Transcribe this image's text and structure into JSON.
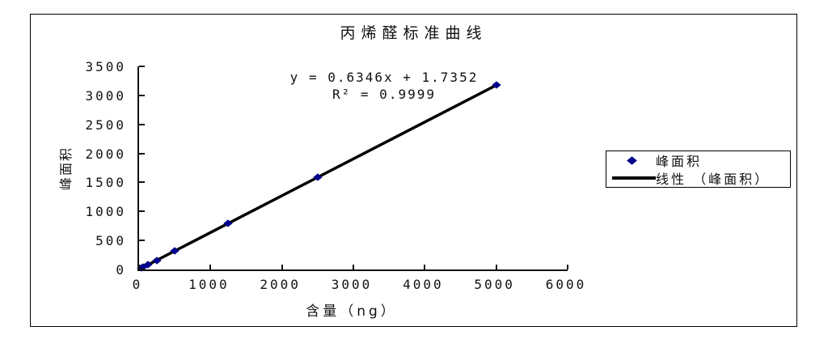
{
  "chart_data": {
    "type": "scatter",
    "title": "丙烯醛标准曲线",
    "xlabel": "含量（ng）",
    "ylabel": "峰面积",
    "xlim": [
      0,
      6000
    ],
    "ylim": [
      0,
      3500
    ],
    "x_ticks": [
      0,
      1000,
      2000,
      3000,
      4000,
      5000,
      6000
    ],
    "y_ticks": [
      0,
      500,
      1000,
      1500,
      2000,
      2500,
      3000,
      3500
    ],
    "grid": false,
    "legend_position": "right",
    "annotations": [
      "y = 0.6346x + 1.7352",
      "R² = 0.9999"
    ],
    "series": [
      {
        "name": "峰面积",
        "type": "scatter",
        "marker": "diamond",
        "color": "#00008B",
        "points": [
          [
            30,
            21
          ],
          [
            60,
            40
          ],
          [
            125,
            81
          ],
          [
            250,
            160
          ],
          [
            500,
            319
          ],
          [
            1250,
            795
          ],
          [
            2500,
            1588
          ],
          [
            5000,
            3175
          ]
        ]
      },
      {
        "name": "线性 （峰面积）",
        "type": "line",
        "color": "#000000",
        "fit": {
          "slope": 0.6346,
          "intercept": 1.7352,
          "r_squared": 0.9999
        },
        "x_range": [
          0,
          5000
        ]
      }
    ]
  }
}
